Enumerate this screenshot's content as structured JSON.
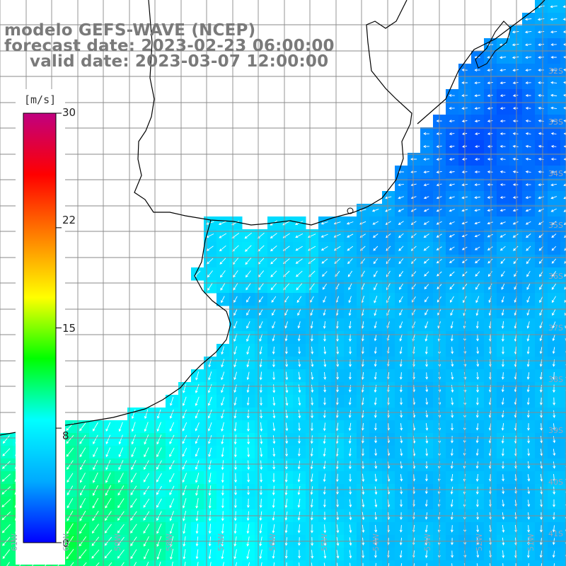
{
  "title": {
    "model": "modelo GEFS-WAVE (NCEP)",
    "forecast": "forecast date: 2023-02-23 06:00:00",
    "valid": "valid date: 2023-03-07 12:00:00"
  },
  "colorbar": {
    "unit": "[m/s]",
    "min": 0,
    "max": 30,
    "ticks": [
      "30",
      "22",
      "15",
      "8",
      "0"
    ],
    "tick_values": [
      30,
      22,
      15,
      8,
      0
    ],
    "colors": [
      "#0000ff",
      "#00aaff",
      "#00ffff",
      "#00ff00",
      "#ffff00",
      "#ff8000",
      "#ff0000",
      "#c00080"
    ]
  },
  "axes": {
    "lat_labels": [
      "32S",
      "33S",
      "34S",
      "35S",
      "36S",
      "37S",
      "38S",
      "39S",
      "40S",
      "41S"
    ],
    "lon_labels": [
      "61W",
      "60W",
      "59W",
      "58W",
      "57W",
      "56W",
      "55W",
      "54W",
      "53W",
      "52W",
      "51W"
    ]
  },
  "map": {
    "land_color": "#ffffff",
    "coast_color": "#000000",
    "grid_color": "#8a8a8a",
    "arrow_color": "#ffffff",
    "field": "wind speed with direction arrows"
  }
}
